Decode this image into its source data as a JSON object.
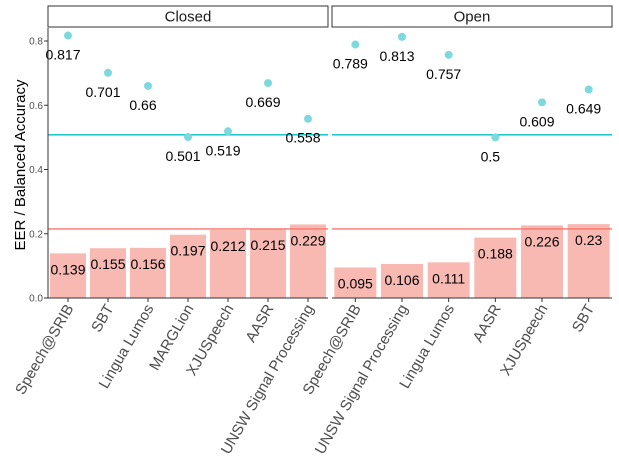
{
  "chart_data": {
    "type": "bar",
    "ylabel": "EER / Balanced Accuracy",
    "ylim": [
      0,
      0.85
    ],
    "yticks": [
      "0.0",
      "0.2",
      "0.4",
      "0.6",
      "0.8"
    ],
    "grid": false,
    "colors": {
      "bar": "#f8b9b3",
      "point": "#7ed9df",
      "eer_line": "#f8766d",
      "acc_line": "#00bfc4"
    },
    "panels": [
      {
        "strip": "Closed",
        "categories": [
          "Speech@SRIB",
          "SBT",
          "Lingua Lumos",
          "MARGLion",
          "XJUSpeech",
          "AASR",
          "UNSW Signal Processing"
        ],
        "eer": [
          0.139,
          0.155,
          0.156,
          0.197,
          0.212,
          0.215,
          0.229
        ],
        "eer_labels": [
          "0.139",
          "0.155",
          "0.156",
          "0.197",
          "0.212",
          "0.215",
          "0.229"
        ],
        "accuracy": [
          0.817,
          0.701,
          0.66,
          0.501,
          0.519,
          0.669,
          0.558
        ],
        "accuracy_labels": [
          "0.817",
          "0.701",
          "0.66",
          "0.501",
          "0.519",
          "0.669",
          "0.558"
        ],
        "eer_reference": 0.215,
        "accuracy_reference": 0.508
      },
      {
        "strip": "Open",
        "categories": [
          "Speech@SRIB",
          "UNSW Signal Processing",
          "Lingua Lumos",
          "AASR",
          "XJUSpeech",
          "SBT"
        ],
        "eer": [
          0.095,
          0.106,
          0.111,
          0.188,
          0.226,
          0.23
        ],
        "eer_labels": [
          "0.095",
          "0.106",
          "0.111",
          "0.188",
          "0.226",
          "0.23"
        ],
        "accuracy": [
          0.789,
          0.813,
          0.757,
          0.5,
          0.609,
          0.649
        ],
        "accuracy_labels": [
          "0.789",
          "0.813",
          "0.757",
          "0.5",
          "0.609",
          "0.649"
        ],
        "eer_reference": 0.215,
        "accuracy_reference": 0.508
      }
    ]
  }
}
